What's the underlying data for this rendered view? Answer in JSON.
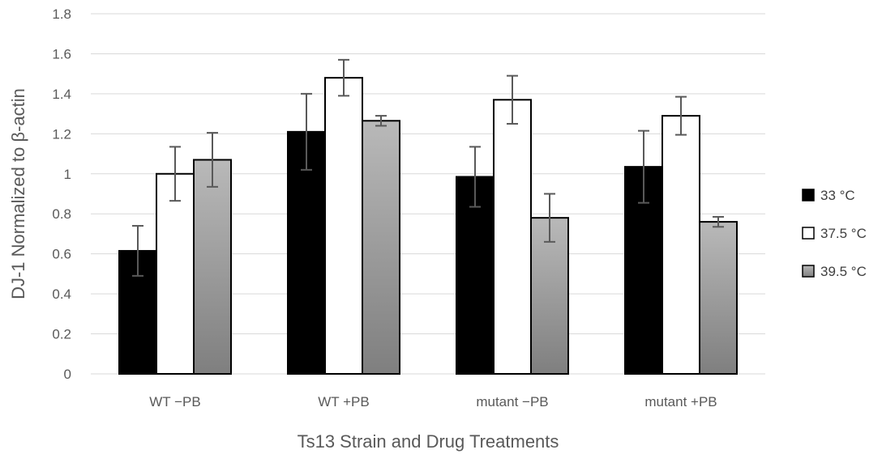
{
  "chart_data": {
    "type": "bar",
    "title": "",
    "xlabel": "Ts13 Strain and Drug Treatments",
    "ylabel": "DJ-1 Normalized  to β-actin",
    "ylim": [
      0,
      1.8
    ],
    "yticks": [
      0,
      0.2,
      0.4,
      0.6,
      0.8,
      1,
      1.2,
      1.4,
      1.6,
      1.8
    ],
    "ytick_labels": [
      "0",
      "0.2",
      "0.4",
      "0.6",
      "0.8",
      "1",
      "1.2",
      "1.4",
      "1.6",
      "1.8"
    ],
    "grid": true,
    "legend_position": "right",
    "categories": [
      "WT −PB",
      "WT +PB",
      "mutant −PB",
      "mutant +PB"
    ],
    "series": [
      {
        "name": "33 °C",
        "values": [
          0.615,
          1.21,
          0.985,
          1.035
        ],
        "errors": [
          0.125,
          0.19,
          0.15,
          0.18
        ],
        "color": "#000000"
      },
      {
        "name": "37.5 °C",
        "values": [
          1.0,
          1.48,
          1.37,
          1.29
        ],
        "errors": [
          0.135,
          0.09,
          0.12,
          0.095
        ],
        "color": "#ffffff"
      },
      {
        "name": "39.5 °C",
        "values": [
          1.07,
          1.265,
          0.78,
          0.76
        ],
        "errors": [
          0.135,
          0.025,
          0.12,
          0.025
        ],
        "color": "gradient-gray"
      }
    ]
  }
}
